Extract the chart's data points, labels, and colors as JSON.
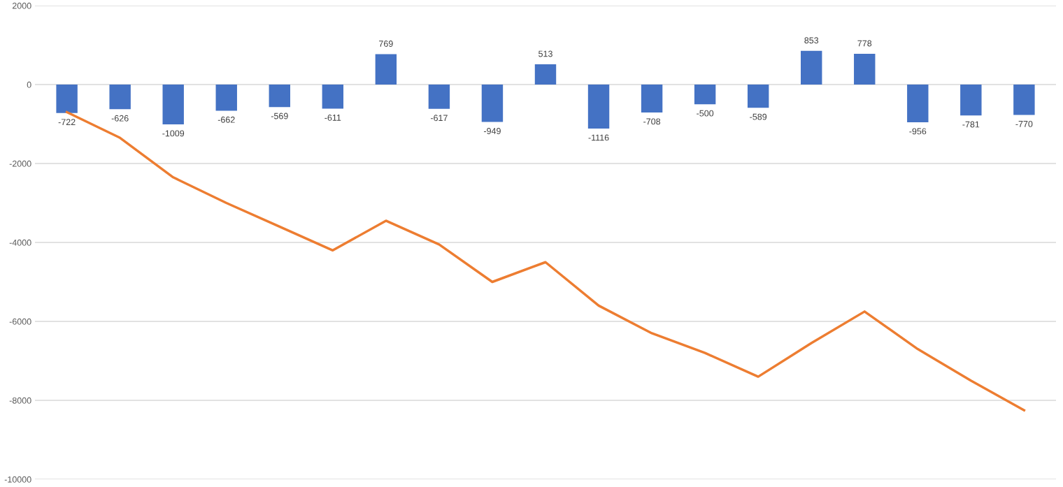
{
  "chart_data": {
    "type": "bar",
    "categories": [
      null,
      null,
      null,
      null,
      null,
      null,
      null,
      null,
      null,
      null,
      null,
      null,
      null,
      null,
      null,
      null,
      null,
      null,
      null
    ],
    "series": [
      {
        "color": "#4472c4",
        "values": [
          -722,
          -626,
          -1009,
          -662,
          -569,
          -611,
          769,
          -617,
          -949,
          513,
          -1116,
          -708,
          -500,
          -589,
          853,
          778,
          -956,
          -781,
          -770
        ],
        "value_labels": [
          "-722",
          "-626",
          "-1009",
          "-662",
          "-569",
          "-611",
          "769",
          "-617",
          "-949",
          "513",
          "-1116",
          "-708",
          "-500",
          "-589",
          "853",
          "778",
          "-956",
          "-781",
          "-770"
        ]
      },
      {
        "type": "line",
        "color": "#ed7d31",
        "values": [
          -700,
          -1350,
          -2350,
          -3000,
          -3600,
          -4200,
          -3450,
          -4050,
          -5000,
          -4500,
          -5600,
          -6300,
          -6800,
          -7400,
          -6550,
          -5750,
          -6700,
          -7500,
          -8250
        ]
      }
    ],
    "ylim": [
      -10000,
      2000
    ],
    "yticks": [
      -10000,
      -8000,
      -6000,
      -4000,
      -2000,
      0,
      2000
    ],
    "grid": "y",
    "marker": "none",
    "line_style": "solid"
  }
}
